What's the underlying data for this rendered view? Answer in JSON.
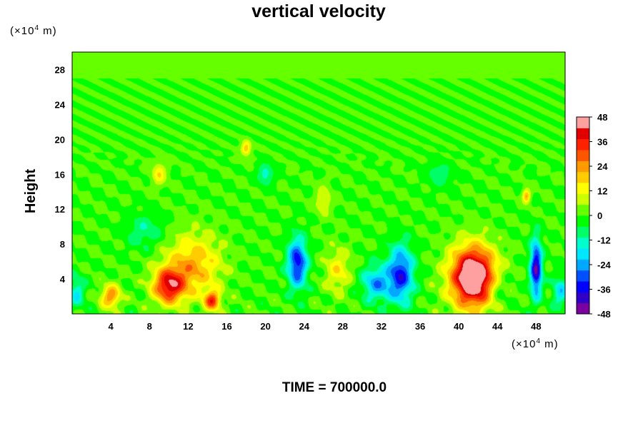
{
  "chart_data": {
    "type": "heatmap",
    "title": "vertical velocity",
    "ylabel": "Height",
    "xlabel": "",
    "x_units_prefix": "(×10",
    "x_units_exp": "4",
    "x_units_suffix": " m)",
    "y_units_prefix": "(×10",
    "y_units_exp": "4",
    "y_units_suffix": " m)",
    "x_ticks": [
      4,
      8,
      12,
      16,
      20,
      24,
      28,
      32,
      36,
      40,
      44,
      48
    ],
    "y_ticks": [
      4,
      8,
      12,
      16,
      20,
      24,
      28
    ],
    "xlim": [
      0,
      51
    ],
    "ylim": [
      0,
      30
    ],
    "colorbar": {
      "ticks": [
        48,
        36,
        24,
        12,
        0,
        -12,
        -24,
        -36,
        -48
      ],
      "range": [
        -48,
        48
      ],
      "colors": [
        "#7a00a0",
        "#3000c8",
        "#0000ff",
        "#0050ff",
        "#00a8ff",
        "#00e6ff",
        "#00ffcc",
        "#00ff66",
        "#00ff00",
        "#66ff00",
        "#ccff00",
        "#ffff00",
        "#ffcc00",
        "#ff9900",
        "#ff5500",
        "#ff2200",
        "#e00000",
        "#ffa0a0"
      ]
    },
    "features": [
      {
        "x": 10.0,
        "y": 3.2,
        "value": 38,
        "sx": 1.6,
        "sy": 2.0
      },
      {
        "x": 12.5,
        "y": 5.5,
        "value": 22,
        "sx": 2.8,
        "sy": 3.5
      },
      {
        "x": 4.0,
        "y": 2.0,
        "value": 26,
        "sx": 1.0,
        "sy": 1.3
      },
      {
        "x": 14.5,
        "y": 1.5,
        "value": 32,
        "sx": 0.8,
        "sy": 1.1
      },
      {
        "x": 41.5,
        "y": 4.2,
        "value": 60,
        "sx": 2.3,
        "sy": 3.4
      },
      {
        "x": 23.3,
        "y": 5.8,
        "value": -36,
        "sx": 1.0,
        "sy": 2.8
      },
      {
        "x": 34.0,
        "y": 4.5,
        "value": -34,
        "sx": 1.3,
        "sy": 3.2
      },
      {
        "x": 31.5,
        "y": 3.5,
        "value": -24,
        "sx": 1.5,
        "sy": 2.0
      },
      {
        "x": 48.0,
        "y": 5.2,
        "value": -42,
        "sx": 0.6,
        "sy": 3.2
      },
      {
        "x": 50.5,
        "y": 2.5,
        "value": -18,
        "sx": 0.8,
        "sy": 1.8
      },
      {
        "x": 0.5,
        "y": 2.5,
        "value": -16,
        "sx": 0.8,
        "sy": 1.8
      },
      {
        "x": 7.5,
        "y": 9.5,
        "value": -10,
        "sx": 2.0,
        "sy": 2.0
      },
      {
        "x": 27.5,
        "y": 5.0,
        "value": 14,
        "sx": 1.3,
        "sy": 2.5
      },
      {
        "x": 9.0,
        "y": 16.0,
        "value": 16,
        "sx": 0.7,
        "sy": 1.2
      },
      {
        "x": 18.0,
        "y": 19.0,
        "value": 20,
        "sx": 0.5,
        "sy": 0.8
      },
      {
        "x": 47.0,
        "y": 13.5,
        "value": 22,
        "sx": 0.4,
        "sy": 0.8
      },
      {
        "x": 26.0,
        "y": 13.0,
        "value": 12,
        "sx": 0.8,
        "sy": 1.6
      },
      {
        "x": 20.0,
        "y": 16.0,
        "value": -14,
        "sx": 0.8,
        "sy": 1.2
      },
      {
        "x": 38.0,
        "y": 16.0,
        "value": -10,
        "sx": 1.2,
        "sy": 1.4
      },
      {
        "x": 44.0,
        "y": 3.0,
        "value": -10,
        "sx": 1.2,
        "sy": 2.0
      }
    ]
  },
  "footer": {
    "time_label": "TIME = 700000.0"
  }
}
